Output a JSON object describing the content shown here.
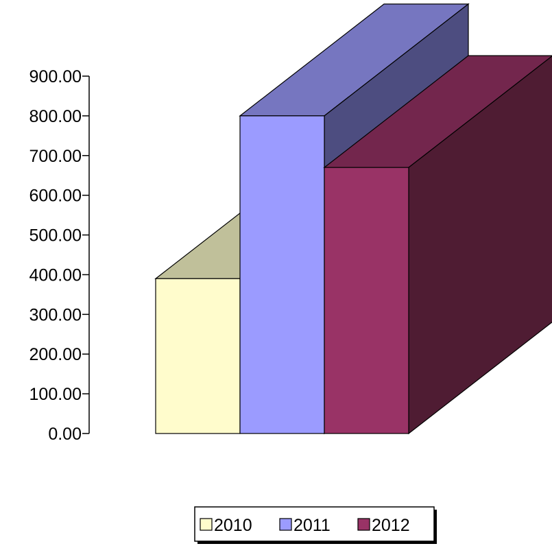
{
  "chart_data": {
    "type": "bar",
    "style": "3d-stacked-depth",
    "y_ticks": [
      "0.00",
      "100.00",
      "200.00",
      "300.00",
      "400.00",
      "500.00",
      "600.00",
      "700.00",
      "800.00",
      "900.00"
    ],
    "ylim": [
      0,
      900
    ],
    "grid": false,
    "legend_position": "bottom",
    "series": [
      {
        "name": "2010",
        "value": 390,
        "color": "#FFFCCC",
        "top_color": "#C0C09A"
      },
      {
        "name": "2011",
        "value": 800,
        "color": "#9B9BFF",
        "top_color": "#7676C0",
        "side_color": "#4D4D80"
      },
      {
        "name": "2012",
        "value": 670,
        "color": "#993366",
        "top_color": "#73264D",
        "side_color": "#4F1C33"
      }
    ]
  }
}
